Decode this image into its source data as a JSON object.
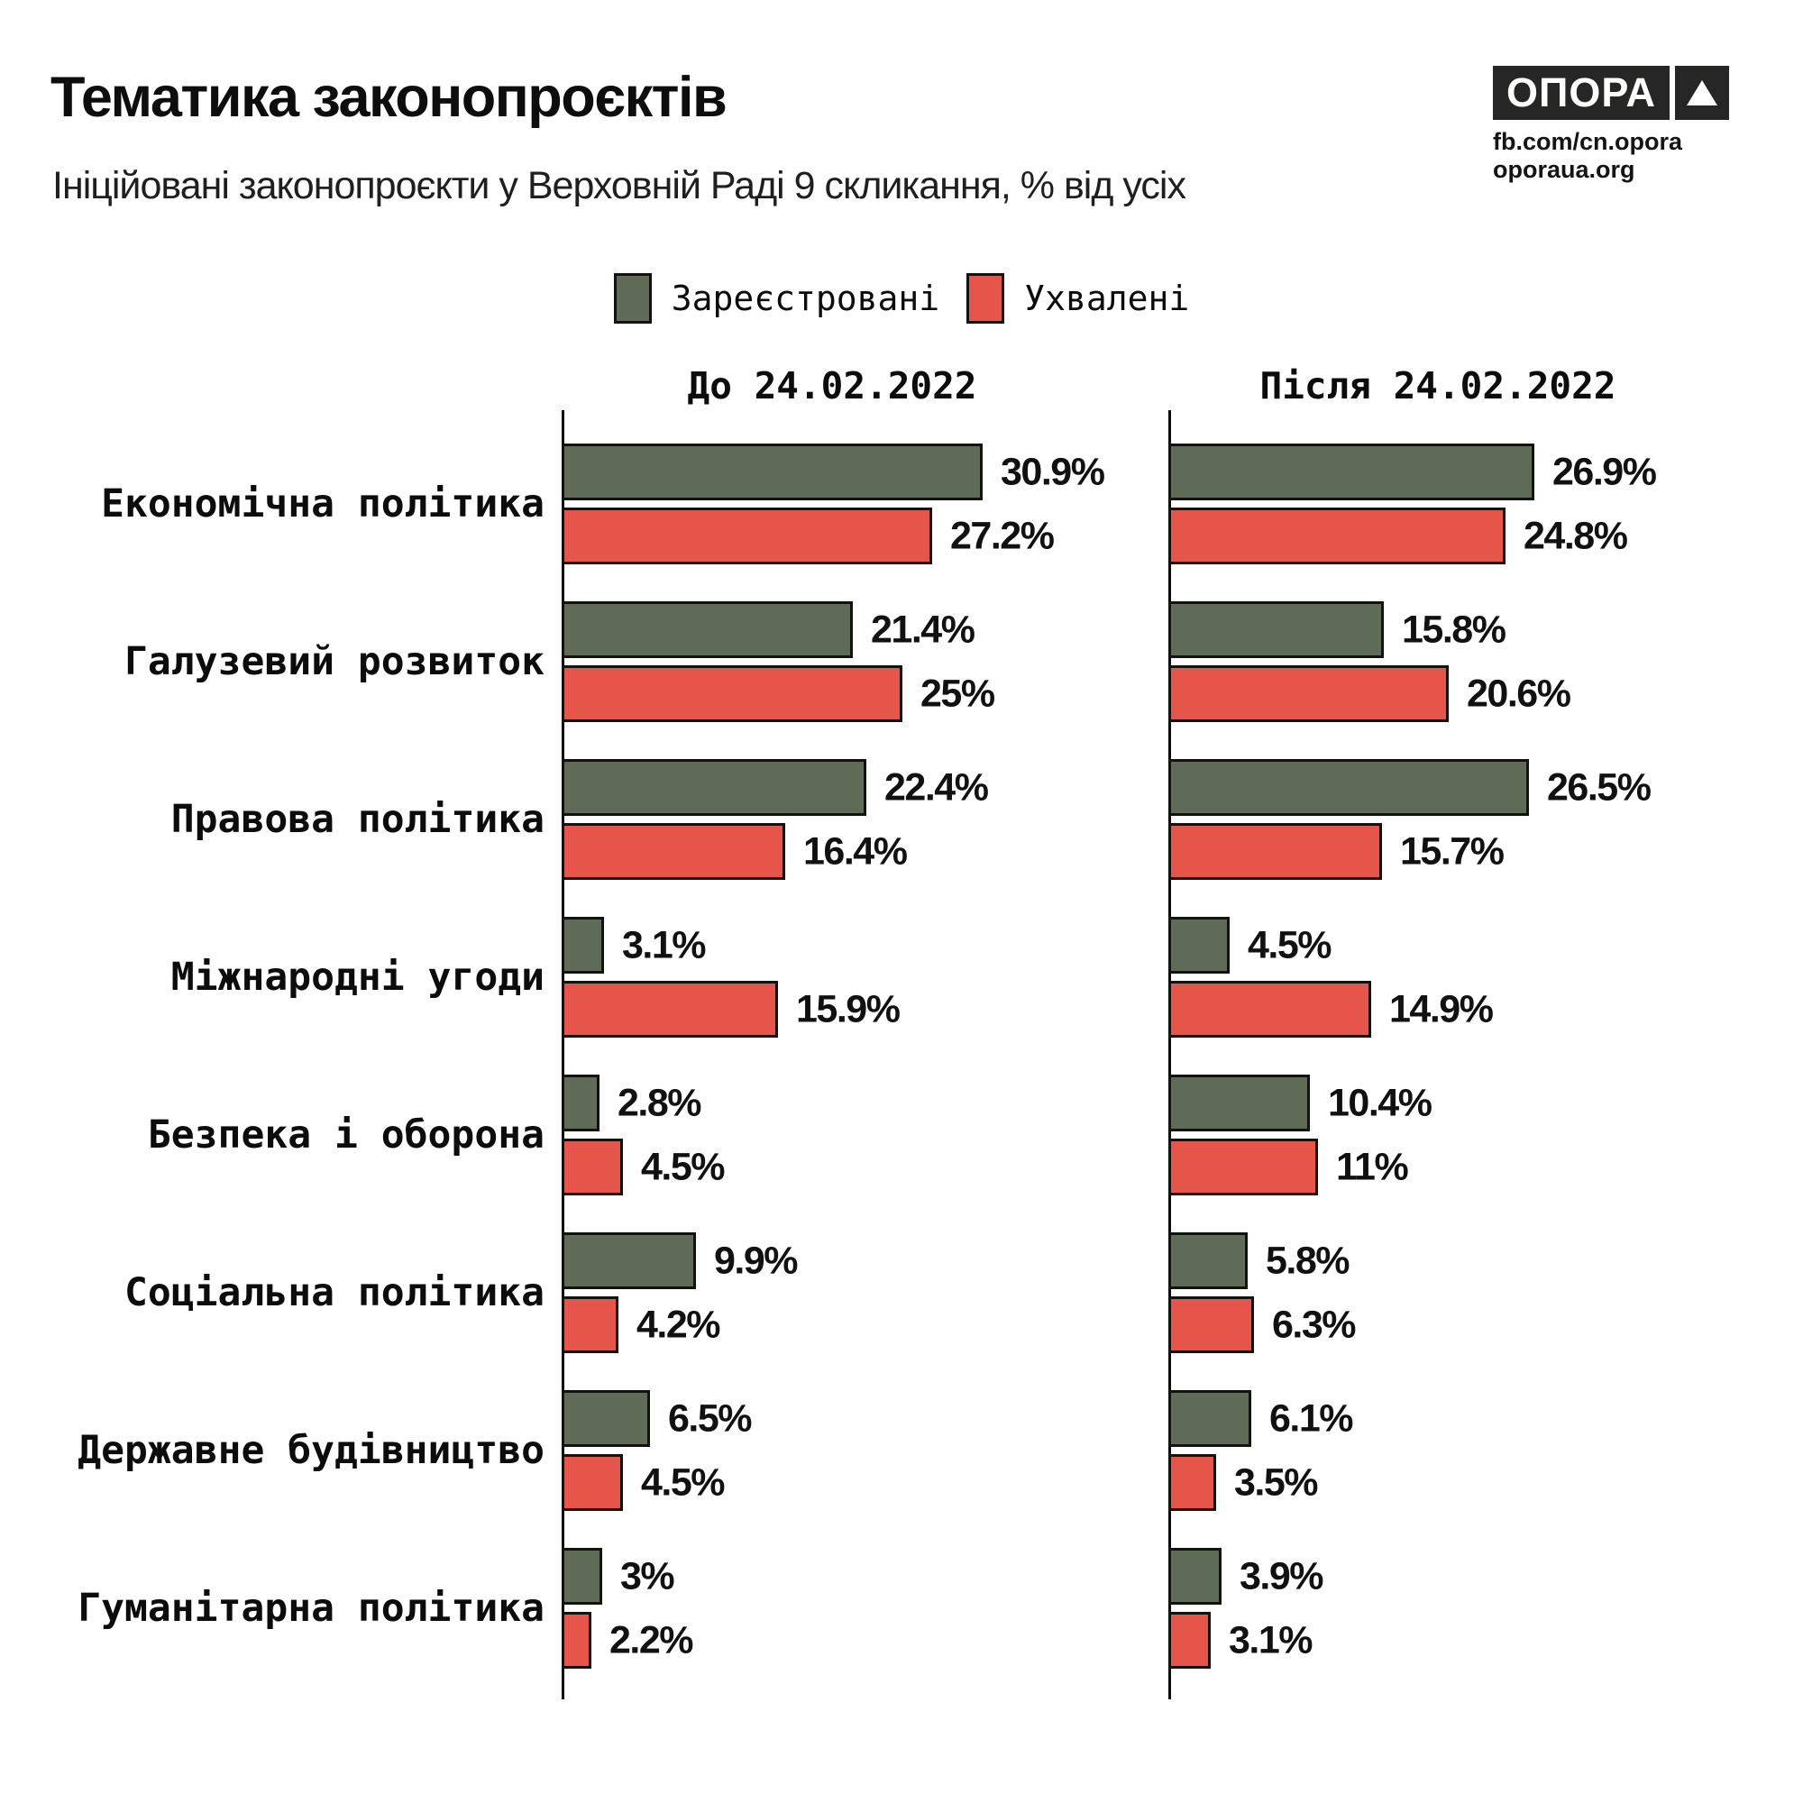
{
  "header": {
    "title": "Тематика законопроєктів",
    "subtitle": "Ініційовані законопроєкти у Верховній Раді 9 скликання, % від усіх"
  },
  "brand": {
    "logo_text": "ОПОРА",
    "facebook": "fb.com/cn.opora",
    "website": "oporaua.org"
  },
  "chart_data": [
    {
      "type": "bar",
      "orientation": "horizontal",
      "title": "До 24.02.2022",
      "categories": [
        "Економічна політика",
        "Галузевий розвиток",
        "Правова політика",
        "Міжнародні угоди",
        "Безпека і оборона",
        "Соціальна політика",
        "Державне будівництво",
        "Гуманітарна політика"
      ],
      "series": [
        {
          "name": "Зареєстровані",
          "color": "#5d6b57",
          "values": [
            30.9,
            21.4,
            22.4,
            3.1,
            2.8,
            9.9,
            6.5,
            3
          ]
        },
        {
          "name": "Ухвалені",
          "color": "#e6554a",
          "values": [
            27.2,
            25,
            16.4,
            15.9,
            4.5,
            4.2,
            4.5,
            2.2
          ]
        }
      ],
      "value_suffix": "%",
      "value_labels": true,
      "xlim": [
        0,
        33
      ],
      "grid": false,
      "legend_position": "top-center"
    },
    {
      "type": "bar",
      "orientation": "horizontal",
      "title": "Після 24.02.2022",
      "categories": [
        "Економічна політика",
        "Галузевий розвиток",
        "Правова політика",
        "Міжнародні угоди",
        "Безпека і оборона",
        "Соціальна політика",
        "Державне будівництво",
        "Гуманітарна політика"
      ],
      "series": [
        {
          "name": "Зареєстровані",
          "color": "#5d6b57",
          "values": [
            26.9,
            15.8,
            26.5,
            4.5,
            10.4,
            5.8,
            6.1,
            3.9
          ]
        },
        {
          "name": "Ухвалені",
          "color": "#e6554a",
          "values": [
            24.8,
            20.6,
            15.7,
            14.9,
            11,
            6.3,
            3.5,
            3.1
          ]
        }
      ],
      "value_suffix": "%",
      "value_labels": true,
      "xlim": [
        0,
        33
      ],
      "grid": false,
      "legend_position": "top-center"
    }
  ]
}
